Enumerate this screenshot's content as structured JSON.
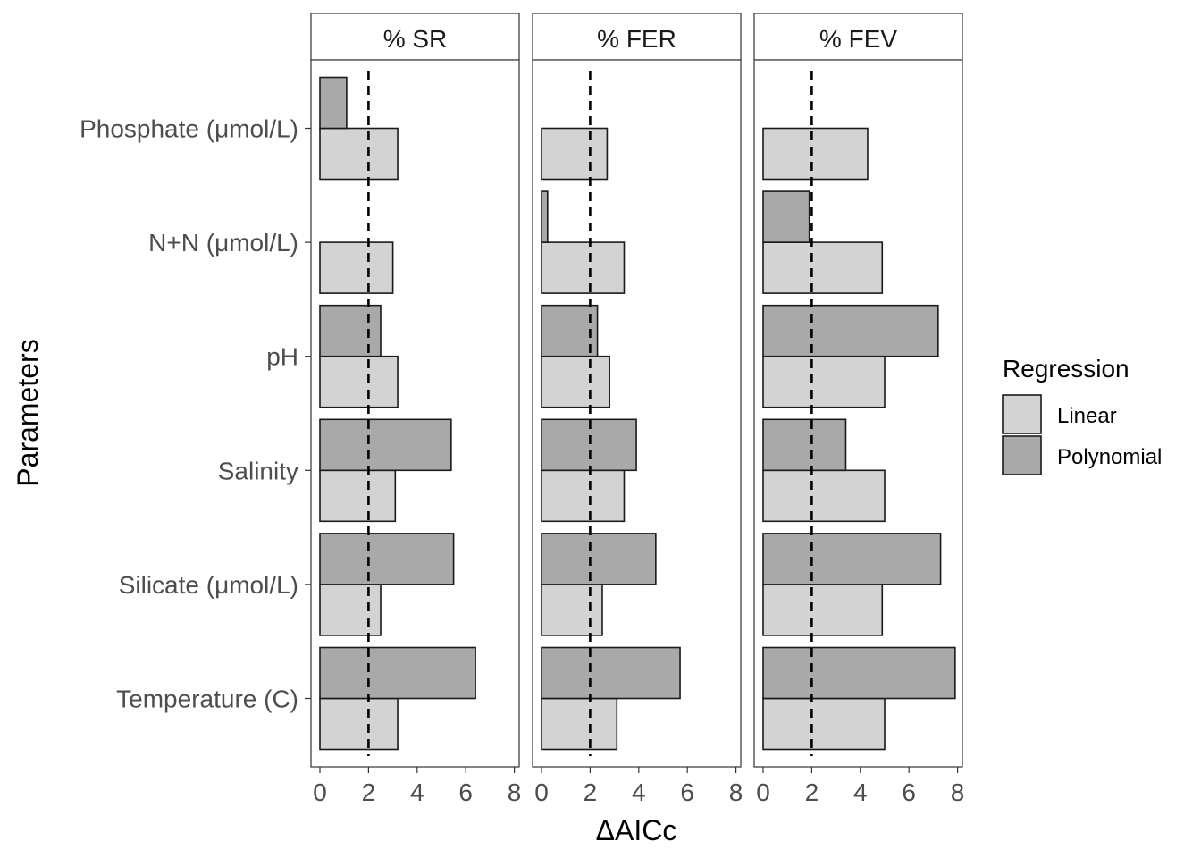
{
  "chart_data": {
    "type": "bar",
    "orientation": "horizontal",
    "facet_by": "response",
    "facets": [
      "% SR",
      "% FER",
      "% FEV"
    ],
    "categories": [
      "Phosphate (μmol/L)",
      "N+N (μmol/L)",
      "pH",
      "Salinity",
      "Silicate (μmol/L)",
      "Temperature (C)"
    ],
    "xlabel": "ΔAICc",
    "ylabel": "Parameters",
    "xlim": [
      0,
      8
    ],
    "xticks": [
      0,
      2,
      4,
      6,
      8
    ],
    "reference_line": {
      "x": 2,
      "style": "dashed"
    },
    "legend": {
      "title": "Regression",
      "position": "right"
    },
    "series": [
      {
        "name": "Linear",
        "color": "#d3d3d3",
        "values": [
          [
            3.2,
            3.0,
            3.2,
            3.1,
            2.5,
            3.2
          ],
          [
            2.7,
            3.4,
            2.8,
            3.4,
            2.5,
            3.1
          ],
          [
            4.3,
            4.9,
            5.0,
            5.0,
            4.9,
            5.0
          ]
        ]
      },
      {
        "name": "Polynomial",
        "color": "#a9a9a9",
        "values": [
          [
            1.1,
            0.0,
            2.5,
            5.4,
            5.5,
            6.4
          ],
          [
            0.0,
            0.25,
            2.3,
            3.9,
            4.7,
            5.7
          ],
          [
            0.0,
            1.9,
            7.2,
            3.4,
            7.3,
            7.9
          ]
        ]
      }
    ],
    "grid": false
  }
}
